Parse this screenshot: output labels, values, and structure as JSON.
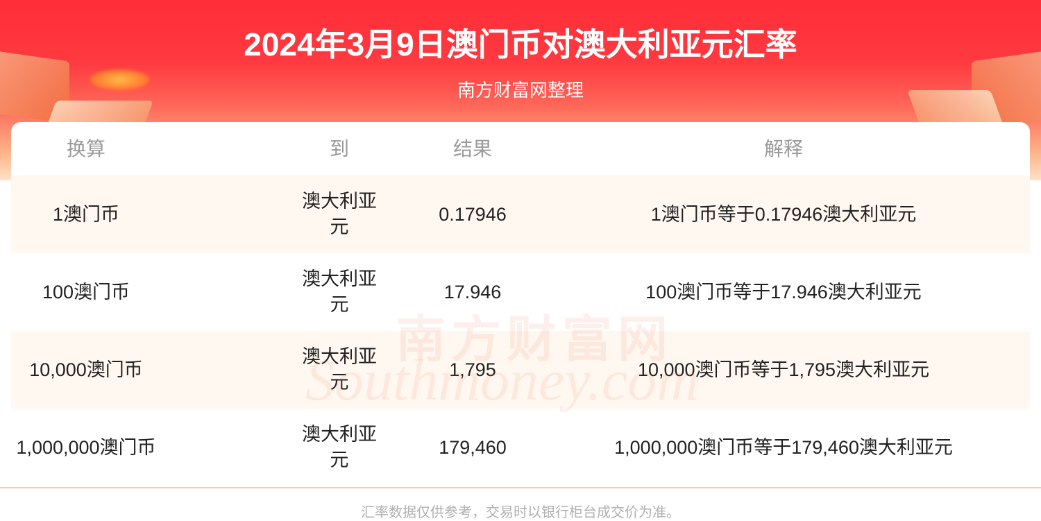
{
  "header": {
    "title": "2024年3月9日澳门币对澳大利亚元汇率",
    "subtitle": "南方财富网整理"
  },
  "table": {
    "columns": [
      "换算",
      "到",
      "结果",
      "解释"
    ],
    "rows": [
      {
        "from": "1澳门币",
        "to": "澳大利亚元",
        "result": "0.17946",
        "explain": "1澳门币等于0.17946澳大利亚元"
      },
      {
        "from": "100澳门币",
        "to": "澳大利亚元",
        "result": "17.946",
        "explain": "100澳门币等于17.946澳大利亚元"
      },
      {
        "from": "10,000澳门币",
        "to": "澳大利亚元",
        "result": "1,795",
        "explain": "10,000澳门币等于1,795澳大利亚元"
      },
      {
        "from": "1,000,000澳门币",
        "to": "澳大利亚元",
        "result": "179,460",
        "explain": "1,000,000澳门币等于179,460澳大利亚元"
      }
    ]
  },
  "watermark": {
    "cn": "南方财富网",
    "en": "Southmoney.com"
  },
  "footer": "汇率数据仅供参考，交易时以银行柜台成交价为准。",
  "colors": {
    "brand_red": "#ff2d38",
    "row_alt": "#fff8f1",
    "divider": "#fbcb9c"
  }
}
